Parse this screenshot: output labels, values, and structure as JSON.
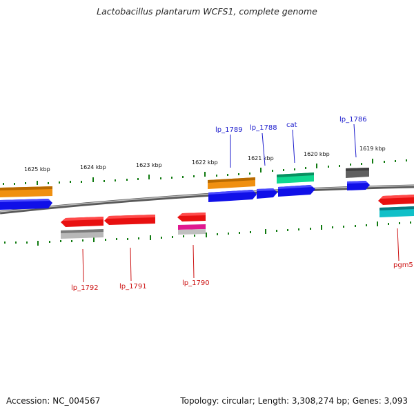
{
  "title": "Lactobacillus plantarum WCFS1, complete genome",
  "accession": "Accession: NC_004567",
  "topology": "Topology: circular; Length: 3,308,274 bp; Genes: 3,093",
  "scale_labels": [
    "1625 kbp",
    "1624 kbp",
    "1623 kbp",
    "1622 kbp",
    "1621 kbp",
    "1620 kbp",
    "1619 kbp"
  ],
  "gene_labels_forward": [
    "lp_1789",
    "lp_1788",
    "cat",
    "lp_1786"
  ],
  "gene_labels_reverse": [
    "lp_1792",
    "lp_1791",
    "lp_1790",
    "pgm5"
  ],
  "colors": {
    "orange": "#f09010",
    "blue": "#1010e8",
    "red": "#e81010",
    "green": "#10d890",
    "gray_dark": "#606060",
    "gray_light": "#b8b8b8",
    "magenta": "#e01890",
    "cyan": "#10c0c8",
    "tick_green": "#107a10",
    "backbone": "#808080"
  }
}
